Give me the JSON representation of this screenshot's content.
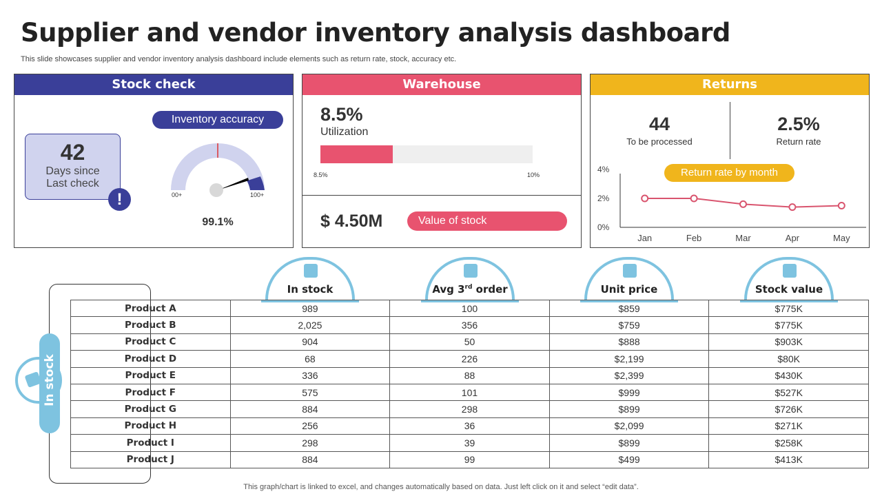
{
  "title": "Supplier and vendor inventory analysis dashboard",
  "subtitle": "This slide showcases supplier and vendor inventory analysis dashboard include elements such as return rate, stock, accuracy etc.",
  "colors": {
    "stock": "#3a3f99",
    "warehouse": "#e8536f",
    "returns": "#f0b51c",
    "table_accent": "#7ec3e0"
  },
  "stock_check": {
    "header": "Stock check",
    "days": "42",
    "days_label1": "Days since",
    "days_label2": "Last check",
    "alert_icon": "exclamation-icon",
    "accuracy_label": "Inventory  accuracy",
    "gauge_min": "00+",
    "gauge_max": "100+",
    "accuracy_value": "99.1%",
    "accuracy_pct": 99.1
  },
  "warehouse": {
    "header": "Warehouse",
    "utilization_value": "8.5%",
    "utilization_label": "Utilization",
    "bar_fill_pct": 8.5,
    "bar_max_pct": 10,
    "bar_min_label": "8.5%",
    "bar_max_label": "10%",
    "stock_value": "$ 4.50M",
    "stock_value_label": "Value of stock"
  },
  "returns": {
    "header": "Returns",
    "to_process": "44",
    "to_process_label": "To be processed",
    "return_rate": "2.5%",
    "return_rate_label": "Return rate",
    "chart_title": "Return rate by month"
  },
  "chart_data": {
    "type": "line",
    "title": "Return rate by month",
    "categories": [
      "Jan",
      "Feb",
      "Mar",
      "Apr",
      "May"
    ],
    "values": [
      2.0,
      2.0,
      1.6,
      1.4,
      1.5
    ],
    "ylim": [
      0,
      4
    ],
    "yticks": [
      "0%",
      "2%",
      "4%"
    ],
    "color": "#d9546e"
  },
  "side_label": "In stock",
  "table": {
    "columns": [
      "In stock",
      "Avg 3rd order",
      "Unit price",
      "Stock value"
    ],
    "col_sup": {
      "pre": "Avg 3",
      "sup": "rd",
      "post": " order"
    },
    "rows": [
      [
        "Product A",
        "989",
        "100",
        "$859",
        "$775K"
      ],
      [
        "Product B",
        "2,025",
        "356",
        "$759",
        "$775K"
      ],
      [
        "Product C",
        "904",
        "50",
        "$888",
        "$903K"
      ],
      [
        "Product D",
        "68",
        "226",
        "$2,199",
        "$80K"
      ],
      [
        "Product E",
        "336",
        "88",
        "$2,399",
        "$430K"
      ],
      [
        "Product F",
        "575",
        "101",
        "$999",
        "$527K"
      ],
      [
        "Product G",
        "884",
        "298",
        "$899",
        "$726K"
      ],
      [
        "Product H",
        "256",
        "36",
        "$2,099",
        "$271K"
      ],
      [
        "Product I",
        "298",
        "39",
        "$899",
        "$258K"
      ],
      [
        "Product J",
        "884",
        "99",
        "$499",
        "$413K"
      ]
    ]
  },
  "footer": "This graph/chart is linked to excel, and changes automatically based on data. Just left click on it and select “edit data”."
}
